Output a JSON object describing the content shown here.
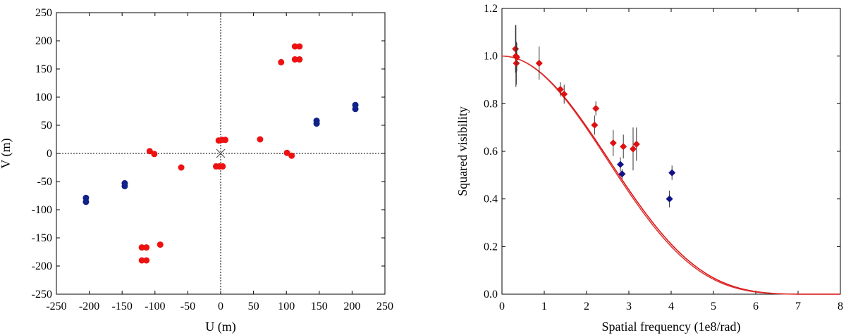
{
  "chart_data": [
    {
      "type": "scatter",
      "title": "",
      "xlabel": "U (m)",
      "ylabel": "V (m)",
      "xlim": [
        -250,
        250
      ],
      "ylim": [
        -250,
        250
      ],
      "xticks": [
        -250,
        -200,
        -150,
        -100,
        -50,
        0,
        50,
        100,
        150,
        200,
        250
      ],
      "yticks": [
        -250,
        -200,
        -150,
        -100,
        -50,
        0,
        50,
        100,
        150,
        200,
        250
      ],
      "origin_lines": true,
      "origin_marker": "x",
      "series": [
        {
          "name": "red",
          "color": "#ee1111",
          "points": [
            [
              113,
              190
            ],
            [
              120,
              190
            ],
            [
              113,
              167
            ],
            [
              120,
              167
            ],
            [
              92,
              162
            ],
            [
              -113,
              -190
            ],
            [
              -120,
              -190
            ],
            [
              -113,
              -167
            ],
            [
              -120,
              -167
            ],
            [
              -92,
              -162
            ],
            [
              60,
              25
            ],
            [
              -60,
              -25
            ],
            [
              -108,
              4
            ],
            [
              -101,
              -1
            ],
            [
              101,
              1
            ],
            [
              108,
              -4
            ],
            [
              -3,
              23
            ],
            [
              2,
              24
            ],
            [
              7,
              24
            ],
            [
              -7,
              -23
            ],
            [
              -2,
              -23
            ],
            [
              3,
              -23
            ]
          ]
        },
        {
          "name": "blue",
          "color": "#112288",
          "points": [
            [
              205,
              86
            ],
            [
              205,
              79
            ],
            [
              146,
              58
            ],
            [
              146,
              53
            ],
            [
              -205,
              -79
            ],
            [
              -205,
              -86
            ],
            [
              -146,
              -53
            ],
            [
              -146,
              -58
            ]
          ]
        }
      ]
    },
    {
      "type": "scatter",
      "title": "",
      "xlabel": "Spatial frequency (1e8/rad)",
      "ylabel": "Squared visibility",
      "xlim": [
        0,
        8
      ],
      "ylim": [
        0,
        1.2
      ],
      "xticks": [
        0,
        1,
        2,
        3,
        4,
        5,
        6,
        7,
        8
      ],
      "yticks": [
        0.0,
        0.2,
        0.4,
        0.6,
        0.8,
        1.0,
        1.2
      ],
      "marker": "diamond",
      "model_curves": [
        {
          "name": "fit",
          "color": "#dd1111",
          "zero_at": 7.6
        },
        {
          "name": "fit-alt",
          "color": "#dd3333",
          "zero_at": 7.5
        }
      ],
      "series": [
        {
          "name": "red",
          "color": "#dd1111",
          "points": [
            {
              "x": 0.32,
              "y": 1.03,
              "err": 0.1
            },
            {
              "x": 0.33,
              "y": 1.0,
              "err": 0.13
            },
            {
              "x": 0.34,
              "y": 0.97,
              "err": 0.09
            },
            {
              "x": 0.35,
              "y": 0.995,
              "err": 0.06
            },
            {
              "x": 0.88,
              "y": 0.97,
              "err": 0.07
            },
            {
              "x": 1.38,
              "y": 0.86,
              "err": 0.03
            },
            {
              "x": 1.47,
              "y": 0.84,
              "err": 0.04
            },
            {
              "x": 2.19,
              "y": 0.71,
              "err": 0.04
            },
            {
              "x": 2.22,
              "y": 0.78,
              "err": 0.03
            },
            {
              "x": 2.63,
              "y": 0.635,
              "err": 0.055
            },
            {
              "x": 2.87,
              "y": 0.62,
              "err": 0.05
            },
            {
              "x": 3.1,
              "y": 0.61,
              "err": 0.09
            },
            {
              "x": 3.18,
              "y": 0.63,
              "err": 0.07
            }
          ]
        },
        {
          "name": "blue",
          "color": "#111188",
          "points": [
            {
              "x": 2.8,
              "y": 0.545,
              "err": 0.03
            },
            {
              "x": 2.84,
              "y": 0.505,
              "err": 0.02
            },
            {
              "x": 3.96,
              "y": 0.4,
              "err": 0.035
            },
            {
              "x": 4.02,
              "y": 0.51,
              "err": 0.03
            }
          ]
        }
      ]
    }
  ]
}
